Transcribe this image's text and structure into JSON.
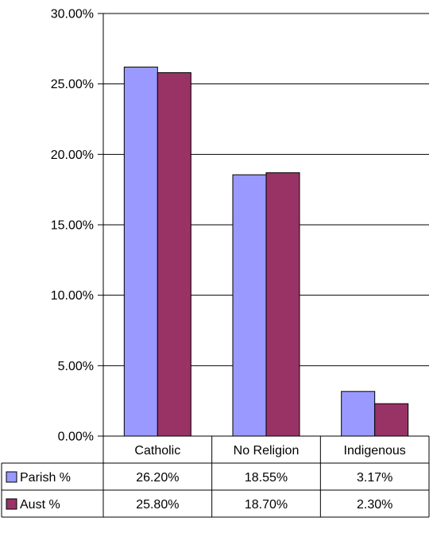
{
  "chart_data": {
    "type": "bar",
    "categories": [
      "Catholic",
      "No Religion",
      "Indigenous"
    ],
    "series": [
      {
        "name": "Parish %",
        "values": [
          26.2,
          18.55,
          3.17
        ],
        "labels": [
          "26.20%",
          "18.55%",
          "3.17%"
        ],
        "color": "#9999ff"
      },
      {
        "name": "Aust %",
        "values": [
          25.8,
          18.7,
          2.3
        ],
        "labels": [
          "25.80%",
          "18.70%",
          "2.30%"
        ],
        "color": "#993366"
      }
    ],
    "ylim": [
      0,
      30
    ],
    "yticks": [
      "0.00%",
      "5.00%",
      "10.00%",
      "15.00%",
      "20.00%",
      "25.00%",
      "30.00%"
    ],
    "grid": true,
    "legend": "data-table"
  }
}
